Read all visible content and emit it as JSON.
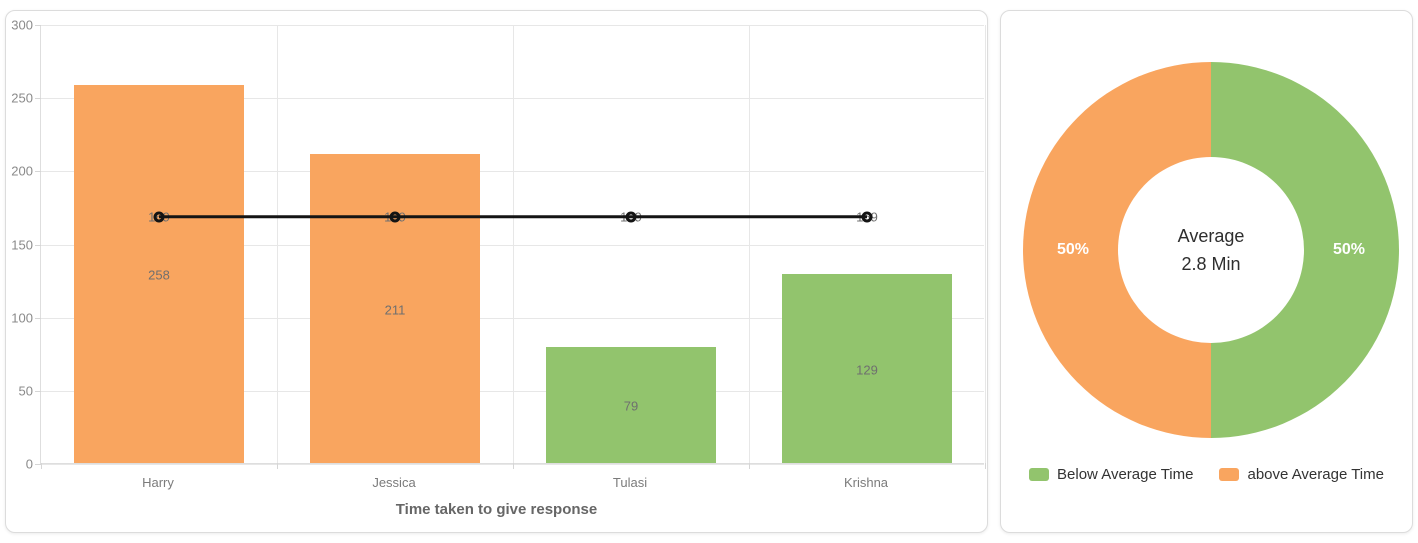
{
  "chart_data": [
    {
      "type": "bar",
      "title": "Time taken to give response",
      "categories": [
        "Harry",
        "Jessica",
        "Tulasi",
        "Krishna"
      ],
      "series": [
        {
          "name": "response-time-bars",
          "type": "bar",
          "values": [
            258,
            211,
            79,
            129
          ],
          "colors": [
            "#F9A55F",
            "#F9A55F",
            "#92C46D",
            "#92C46D"
          ],
          "data_labels": [
            "258",
            "211",
            "79",
            "129"
          ]
        },
        {
          "name": "average-line",
          "type": "line",
          "values": [
            169,
            169,
            169,
            169
          ],
          "color": "#141414",
          "data_labels": [
            "169",
            "169",
            "169",
            "169"
          ]
        }
      ],
      "ylim": [
        0,
        300
      ],
      "y_ticks": [
        300,
        250,
        200,
        150,
        100,
        50,
        0
      ],
      "grid": true,
      "legend": "none"
    },
    {
      "type": "pie",
      "style": "donut",
      "slices": [
        {
          "label": "Below Average Time",
          "value": 50,
          "display": "50%",
          "color": "#92C46D"
        },
        {
          "label": "above Average Time",
          "value": 50,
          "display": "50%",
          "color": "#F9A55F"
        }
      ],
      "center_text": [
        "Average",
        "2.8 Min"
      ],
      "legend_position": "bottom"
    }
  ],
  "colors": {
    "above_average": "#F9A55F",
    "below_average": "#92C46D",
    "average_line": "#141414",
    "grid": "#e7e7e7",
    "axis_text": "#8a8a8a",
    "data_label_text": "#6f6f6f",
    "title_text": "#666666",
    "legend_text": "#333333"
  }
}
